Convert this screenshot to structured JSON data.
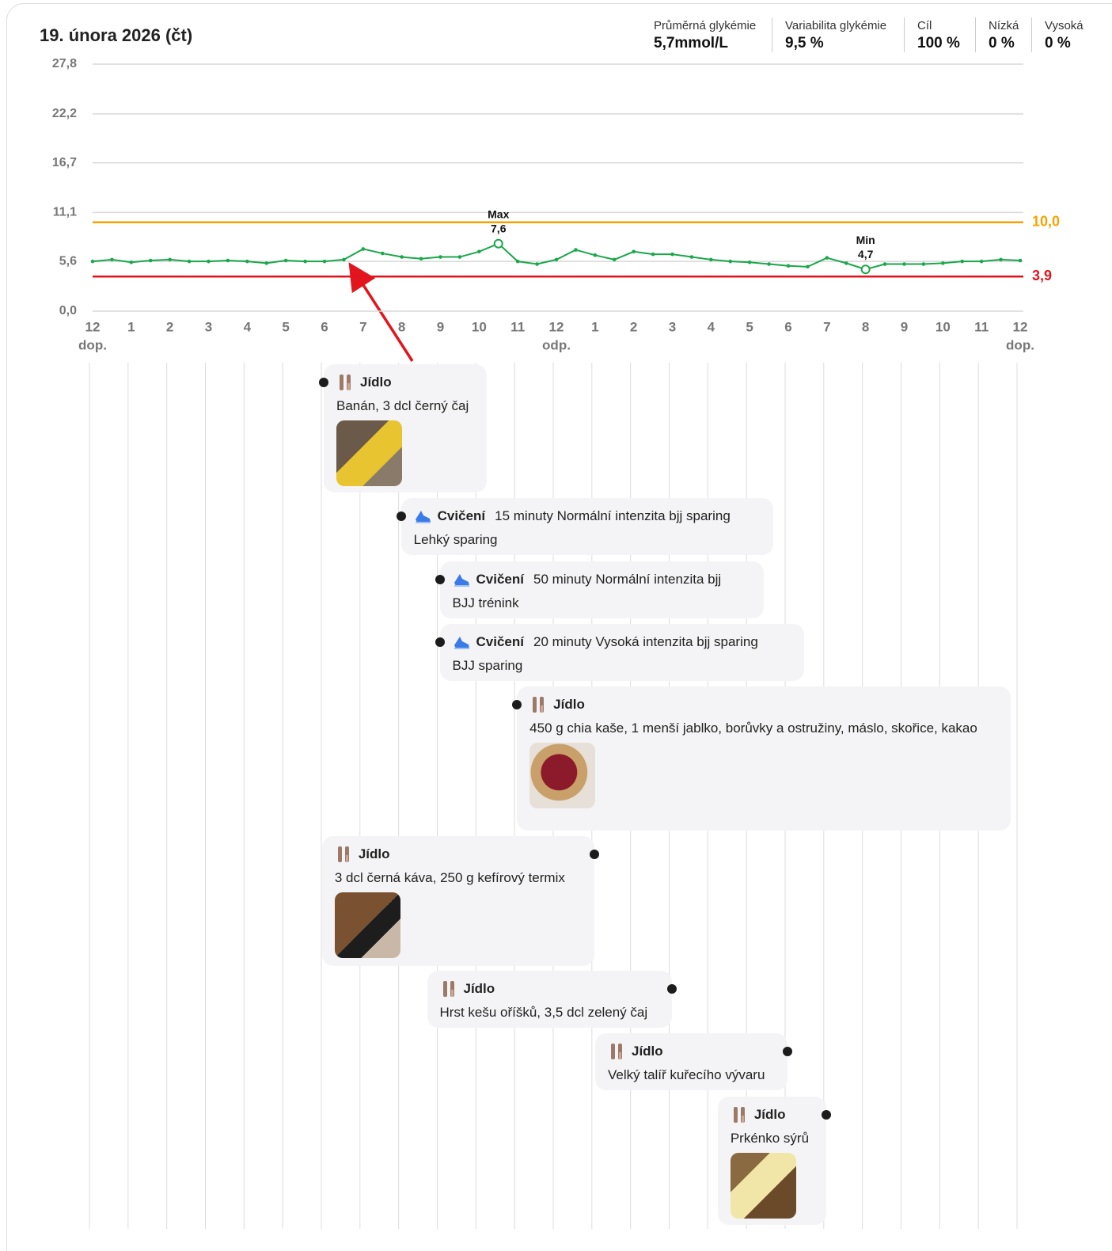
{
  "header": {
    "stats": [
      {
        "label": "Průměrná glykémie",
        "value": "5,7mmol/L"
      },
      {
        "label": "Variabilita glykémie",
        "value": "9,5 %"
      },
      {
        "label": "Cíl",
        "value": "100 %"
      },
      {
        "label": "Nízká",
        "value": "0 %"
      },
      {
        "label": "Vysoká",
        "value": "0 %"
      }
    ]
  },
  "chart_data": {
    "type": "line",
    "title": "19. února 2026 (čt)",
    "color": "#1aa84a",
    "x": [
      0,
      0.5,
      1,
      1.5,
      2,
      2.5,
      3,
      3.5,
      4,
      4.5,
      5,
      5.5,
      6,
      6.5,
      7,
      7.5,
      8,
      8.5,
      9,
      9.5,
      10,
      10.5,
      11,
      11.5,
      12,
      12.5,
      13,
      13.5,
      14,
      14.5,
      15,
      15.5,
      16,
      16.5,
      17,
      17.5,
      18,
      18.5,
      19,
      19.5,
      20,
      20.5,
      21,
      21.5,
      22,
      22.5,
      23,
      23.5,
      24
    ],
    "values": [
      5.6,
      5.8,
      5.5,
      5.7,
      5.8,
      5.6,
      5.6,
      5.7,
      5.6,
      5.4,
      5.7,
      5.6,
      5.6,
      5.8,
      7.0,
      6.5,
      6.1,
      5.9,
      6.1,
      6.1,
      6.7,
      7.6,
      5.6,
      5.3,
      5.8,
      6.9,
      6.3,
      5.8,
      6.7,
      6.4,
      6.4,
      6.1,
      5.8,
      5.6,
      5.5,
      5.3,
      5.1,
      5.0,
      6.0,
      5.4,
      4.7,
      5.3,
      5.3,
      5.3,
      5.4,
      5.6,
      5.6,
      5.8,
      5.7
    ],
    "xlim": [
      0,
      24
    ],
    "xticks": [
      {
        "value": 0,
        "label": "12"
      },
      1,
      2,
      3,
      4,
      5,
      6,
      7,
      8,
      9,
      10,
      11,
      {
        "value": 12,
        "label": "12"
      },
      {
        "value": 13,
        "label": "1"
      },
      {
        "value": 14,
        "label": "2"
      },
      {
        "value": 15,
        "label": "3"
      },
      {
        "value": 16,
        "label": "4"
      },
      {
        "value": 17,
        "label": "5"
      },
      {
        "value": 18,
        "label": "6"
      },
      {
        "value": 19,
        "label": "7"
      },
      {
        "value": 20,
        "label": "8"
      },
      {
        "value": 21,
        "label": "9"
      },
      {
        "value": 22,
        "label": "10"
      },
      {
        "value": 23,
        "label": "11"
      },
      {
        "value": 24,
        "label": "12"
      }
    ],
    "period_labels": [
      {
        "value": 0,
        "label": "dop."
      },
      {
        "value": 12,
        "label": "odp."
      },
      {
        "value": 24,
        "label": "dop."
      }
    ],
    "ylim": [
      0,
      27.8
    ],
    "yticks": [
      {
        "value": 0,
        "label": "0,0"
      },
      {
        "value": 5.6,
        "label": "5,6"
      },
      {
        "value": 11.1,
        "label": "11,1"
      },
      {
        "value": 16.7,
        "label": "16,7"
      },
      {
        "value": 22.2,
        "label": "22,2"
      },
      {
        "value": 27.8,
        "label": "27,8"
      }
    ],
    "grid": true,
    "thresholds": [
      {
        "value": 10.0,
        "label": "10,0",
        "color": "#f5a300"
      },
      {
        "value": 3.9,
        "label": "3,9",
        "color": "#e0141e"
      }
    ],
    "annotations": [
      {
        "label": "Max",
        "x": 10.5,
        "value": 7.6,
        "value_label": "7,6"
      },
      {
        "label": "Min",
        "x": 20,
        "value": 4.7,
        "value_label": "4,7"
      }
    ]
  },
  "timeline": {
    "events": [
      {
        "time": 6,
        "icon": "meal",
        "type": "Jídlo",
        "note": "Banán, 3 dcl černý čaj",
        "photo": true
      },
      {
        "time": 8,
        "icon": "exercise",
        "type": "Cvičení",
        "detail": "15 minuty Normální intenzita bjj sparing",
        "note": "Lehký sparing"
      },
      {
        "time": 9,
        "icon": "exercise",
        "type": "Cvičení",
        "detail": "50 minuty Normální intenzita bjj",
        "note": "BJJ trénink"
      },
      {
        "time": 9,
        "icon": "exercise",
        "type": "Cvičení",
        "detail": "20 minuty Vysoká intenzita bjj sparing",
        "note": "BJJ sparing"
      },
      {
        "time": 11,
        "icon": "meal",
        "type": "Jídlo",
        "note": "450 g chia kaše, 1 menší jablko, borůvky a ostružiny, máslo, skořice, kakao",
        "photo": true
      },
      {
        "time": 13,
        "icon": "meal",
        "type": "Jídlo",
        "note": "3 dcl černá káva, 250 g kefírový termix",
        "photo": true
      },
      {
        "time": 15,
        "icon": "meal",
        "type": "Jídlo",
        "note": "Hrst kešu oříšků, 3,5 dcl zelený čaj"
      },
      {
        "time": 18,
        "icon": "meal",
        "type": "Jídlo",
        "note": "Velký talíř kuřecího vývaru"
      },
      {
        "time": 19,
        "icon": "meal",
        "type": "Jídlo",
        "note": "Prkénko sýrů",
        "photo": true
      }
    ]
  }
}
